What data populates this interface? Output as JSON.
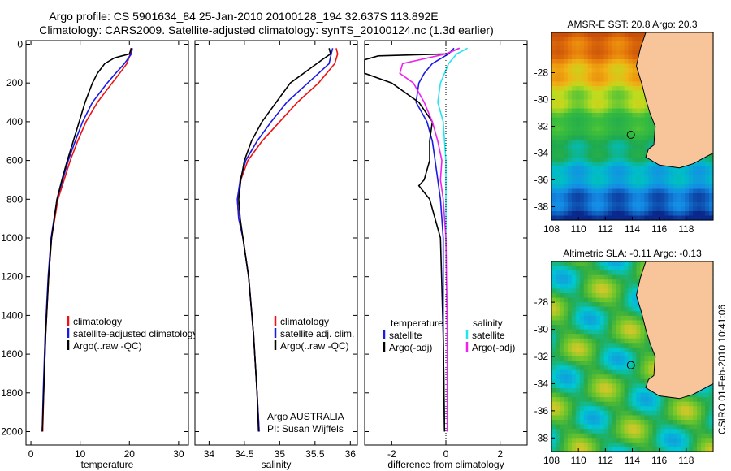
{
  "title": {
    "line1": "Argo profile: CS 5901634_84 25-Jan-2010 20100128_194 32.637S 113.892E",
    "line2": "Climatology: CARS2009. Satellite-adjusted climatology: synTS_20100124.nc (1.3d earlier)"
  },
  "side_label": "CSIRO 01-Feb-2010 10:41:06",
  "colors": {
    "climatology": "#ee1111",
    "satellite": "#1a1ae6",
    "argo": "#000000",
    "salinity_satellite": "#22e6ee",
    "salinity_argo": "#ee22ee",
    "land": "#f8c49a"
  },
  "chart_data": [
    {
      "type": "line",
      "id": "temperature-profile",
      "xlabel": "temperature",
      "ylabel": "",
      "xlim": [
        -1,
        32
      ],
      "ylim": [
        2050,
        0
      ],
      "xticks": [
        "0",
        "10",
        "20",
        "30"
      ],
      "yticks": [
        "0",
        "200",
        "400",
        "600",
        "800",
        "1000",
        "1200",
        "1400",
        "1600",
        "1800",
        "2000"
      ],
      "legend": [
        "climatology",
        "satellite-adjusted climatology",
        "Argo(..raw -QC)"
      ],
      "series": [
        {
          "name": "climatology",
          "color": "climatology",
          "depth": [
            20,
            50,
            100,
            150,
            200,
            300,
            400,
            500,
            600,
            800,
            1000,
            1200,
            1500,
            1800,
            2000
          ],
          "values": [
            20.3,
            20.2,
            19.5,
            18.0,
            16.5,
            13.5,
            11.2,
            9.5,
            8.0,
            5.5,
            4.2,
            3.6,
            3.0,
            2.6,
            2.4
          ]
        },
        {
          "name": "satellite-adjusted climatology",
          "color": "satellite",
          "depth": [
            20,
            50,
            100,
            150,
            200,
            300,
            400,
            500,
            600,
            800,
            1000,
            1200,
            1500,
            1800,
            2000
          ],
          "values": [
            20.6,
            20.4,
            19.0,
            17.2,
            15.5,
            12.5,
            10.5,
            9.0,
            7.6,
            5.3,
            4.1,
            3.5,
            2.9,
            2.5,
            2.3
          ]
        },
        {
          "name": "Argo(..raw -QC)",
          "color": "argo",
          "depth": [
            20,
            50,
            60,
            70,
            100,
            150,
            200,
            300,
            400,
            500,
            600,
            700,
            800,
            1000,
            1200,
            1500,
            1800,
            2000
          ],
          "values": [
            20.4,
            20.0,
            18.5,
            17.0,
            15.0,
            13.5,
            12.5,
            11.0,
            9.8,
            8.6,
            7.4,
            6.3,
            5.3,
            4.2,
            3.6,
            3.0,
            2.6,
            2.3
          ]
        }
      ]
    },
    {
      "type": "line",
      "id": "salinity-profile",
      "xlabel": "salinity",
      "xlim": [
        33.8,
        36.1
      ],
      "ylim": [
        2050,
        0
      ],
      "xticks": [
        "34",
        "34.5",
        "35",
        "35.5",
        "36"
      ],
      "legend": [
        "climatology",
        "satellite adj. clim.",
        "Argo(..raw -QC)"
      ],
      "annotation": [
        "Argo AUSTRALIA",
        "PI: Susan Wijffels"
      ],
      "series": [
        {
          "name": "climatology",
          "color": "climatology",
          "depth": [
            20,
            50,
            100,
            200,
            300,
            400,
            500,
            600,
            700,
            800,
            900,
            1000,
            1200,
            1500,
            1800,
            2000
          ],
          "values": [
            35.8,
            35.82,
            35.78,
            35.55,
            35.25,
            35.0,
            34.75,
            34.55,
            34.45,
            34.4,
            34.42,
            34.48,
            34.56,
            34.63,
            34.68,
            34.71
          ]
        },
        {
          "name": "satellite adj. clim.",
          "color": "satellite",
          "depth": [
            20,
            50,
            100,
            200,
            300,
            400,
            500,
            600,
            700,
            800,
            900,
            1000,
            1200,
            1500,
            1800,
            2000
          ],
          "values": [
            35.75,
            35.73,
            35.7,
            35.4,
            35.1,
            34.88,
            34.68,
            34.52,
            34.44,
            34.4,
            34.42,
            34.48,
            34.56,
            34.63,
            34.68,
            34.71
          ]
        },
        {
          "name": "Argo(..raw -QC)",
          "color": "argo",
          "depth": [
            20,
            50,
            80,
            120,
            200,
            300,
            400,
            500,
            600,
            700,
            800,
            900,
            1000,
            1200,
            1500,
            1800,
            2000
          ],
          "values": [
            35.7,
            35.72,
            35.6,
            35.45,
            35.15,
            34.95,
            34.75,
            34.6,
            34.5,
            34.45,
            34.42,
            34.44,
            34.48,
            34.56,
            34.63,
            34.68,
            34.7
          ]
        }
      ]
    },
    {
      "type": "line",
      "id": "difference-profile",
      "xlabel": "difference from climatology",
      "xlim": [
        -3,
        3
      ],
      "ylim": [
        2050,
        0
      ],
      "xticks": [
        "-2",
        "0",
        "2"
      ],
      "legend_groups": [
        {
          "heading": "temperature",
          "items": [
            "satellite",
            "Argo(-adj)"
          ]
        },
        {
          "heading": "salinity",
          "items": [
            "satellite",
            "Argo(-adj)"
          ]
        }
      ],
      "zero_line": true,
      "series": [
        {
          "name": "temperature satellite",
          "color": "satellite",
          "depth": [
            20,
            50,
            100,
            150,
            200,
            300,
            400,
            500,
            600,
            800,
            1000,
            1500,
            2000
          ],
          "values": [
            0.3,
            0.1,
            -0.5,
            -0.8,
            -1.0,
            -1.1,
            -0.7,
            -0.5,
            -0.4,
            -0.2,
            -0.1,
            -0.1,
            -0.05
          ]
        },
        {
          "name": "temperature Argo(-adj)",
          "color": "argo",
          "depth": [
            20,
            50,
            60,
            80,
            100,
            150,
            200,
            300,
            400,
            500,
            600,
            700,
            730,
            800,
            1000,
            1500,
            2000
          ],
          "values": [
            0.5,
            0.0,
            -2.5,
            -3.0,
            -3.0,
            -3.0,
            -2.0,
            -1.0,
            -0.5,
            -0.6,
            -0.6,
            -0.8,
            -1.0,
            -0.6,
            -0.2,
            -0.1,
            -0.05
          ]
        },
        {
          "name": "salinity satellite",
          "color": "salinity_satellite",
          "depth": [
            20,
            50,
            100,
            200,
            300,
            400,
            500,
            600,
            800,
            1000,
            1500,
            2000
          ],
          "values": [
            0.8,
            0.4,
            0.1,
            -0.2,
            -0.3,
            -0.1,
            -0.05,
            0.0,
            0.0,
            0.0,
            0.05,
            0.05
          ]
        },
        {
          "name": "salinity Argo(-adj)",
          "color": "salinity_argo",
          "depth": [
            20,
            50,
            100,
            150,
            200,
            300,
            400,
            500,
            600,
            700,
            800,
            900,
            1000,
            1500,
            2000
          ],
          "values": [
            0.5,
            0.0,
            -1.6,
            -1.7,
            -1.2,
            -0.8,
            -0.5,
            -0.3,
            -0.15,
            -0.2,
            -0.1,
            -0.05,
            0.0,
            0.05,
            0.05
          ]
        }
      ]
    },
    {
      "type": "heatmap",
      "id": "sst-map",
      "title": "AMSR-E SST: 20.8 Argo: 20.3",
      "xlim": [
        108,
        120
      ],
      "ylim": [
        -39,
        -25
      ],
      "xticks": [
        "108",
        "110",
        "112",
        "114",
        "116",
        "118"
      ],
      "yticks": [
        "-28",
        "-30",
        "-32",
        "-34",
        "-36",
        "-38"
      ],
      "float_position": {
        "lon": 113.892,
        "lat": -32.637
      }
    },
    {
      "type": "heatmap",
      "id": "sla-map",
      "title": "Altimetric SLA: -0.11 Argo: -0.13",
      "xlim": [
        108,
        120
      ],
      "ylim": [
        -39,
        -25
      ],
      "xticks": [
        "108",
        "110",
        "112",
        "114",
        "116",
        "118"
      ],
      "yticks": [
        "-28",
        "-30",
        "-32",
        "-34",
        "-36",
        "-38"
      ],
      "float_position": {
        "lon": 113.892,
        "lat": -32.637
      }
    }
  ]
}
